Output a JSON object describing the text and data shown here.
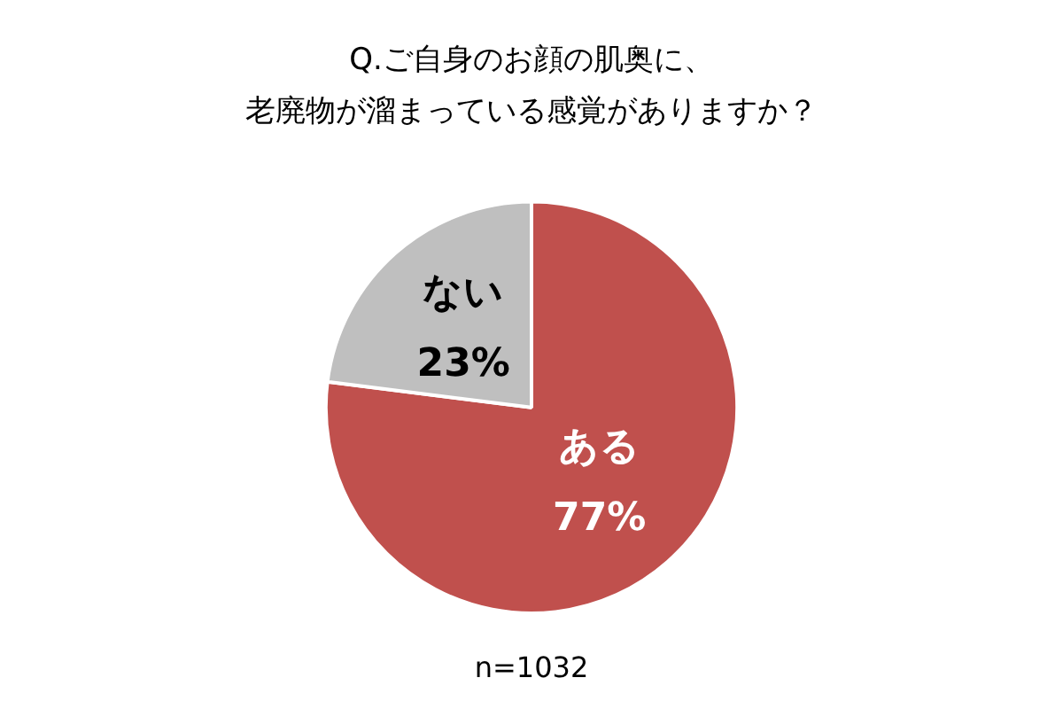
{
  "chart_data": {
    "type": "pie",
    "title": "Q.ご自身のお顔の肌奥に、老廃物が溜まっている感覚がありますか？",
    "categories": [
      "ある",
      "ない"
    ],
    "values": [
      77,
      23
    ],
    "colors": [
      "#c0504d",
      "#bfbfbf"
    ],
    "value_labels": [
      "77%",
      "23%"
    ],
    "annotations": [
      "n=1032"
    ],
    "legend": false
  }
}
